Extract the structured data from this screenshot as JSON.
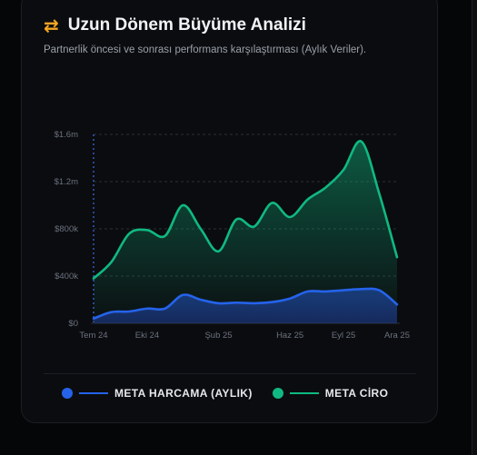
{
  "header": {
    "icon": "swap-arrows-icon",
    "title": "Uzun Dönem Büyüme Analizi",
    "subtitle": "Partnerlik öncesi ve sonrası performans karşılaştırması (Aylık Veriler)."
  },
  "colors": {
    "spend": "#2563eb",
    "revenue": "#10b981",
    "accent": "#f5a623"
  },
  "legend": [
    {
      "label": "META HARCAMA (AYLIK)",
      "color": "#2563eb"
    },
    {
      "label": "META CİRO",
      "color": "#10b981"
    }
  ],
  "chart_data": {
    "type": "area",
    "ytick_labels": [
      "$0",
      "$400k",
      "$800k",
      "$1.2m",
      "$1.6m"
    ],
    "ytick_values": [
      0,
      400000,
      800000,
      1200000,
      1600000
    ],
    "ylim": [
      0,
      1600000
    ],
    "xtick_labels": [
      "Tem 24",
      "Eki 24",
      "Şub 25",
      "Haz 25",
      "Eyl 25",
      "Ara 25"
    ],
    "xlim": [
      "2024-07",
      "2025-12"
    ],
    "x": [
      "2024-07",
      "2024-08",
      "2024-09",
      "2024-10",
      "2024-11",
      "2024-12",
      "2025-01",
      "2025-02",
      "2025-03",
      "2025-04",
      "2025-05",
      "2025-06",
      "2025-07",
      "2025-08",
      "2025-09",
      "2025-10",
      "2025-11",
      "2025-12"
    ],
    "series": [
      {
        "name": "META HARCAMA (AYLIK)",
        "color": "#2563eb",
        "values": [
          40000,
          95000,
          100000,
          125000,
          125000,
          240000,
          200000,
          170000,
          175000,
          170000,
          180000,
          210000,
          270000,
          270000,
          280000,
          290000,
          280000,
          160000
        ]
      },
      {
        "name": "META CİRO",
        "color": "#10b981",
        "values": [
          380000,
          520000,
          760000,
          790000,
          740000,
          1000000,
          800000,
          610000,
          880000,
          820000,
          1020000,
          900000,
          1050000,
          1150000,
          1300000,
          1540000,
          1100000,
          560000
        ]
      }
    ],
    "reference_line_x": "2024-07",
    "grid": true,
    "legend_position": "bottom"
  }
}
